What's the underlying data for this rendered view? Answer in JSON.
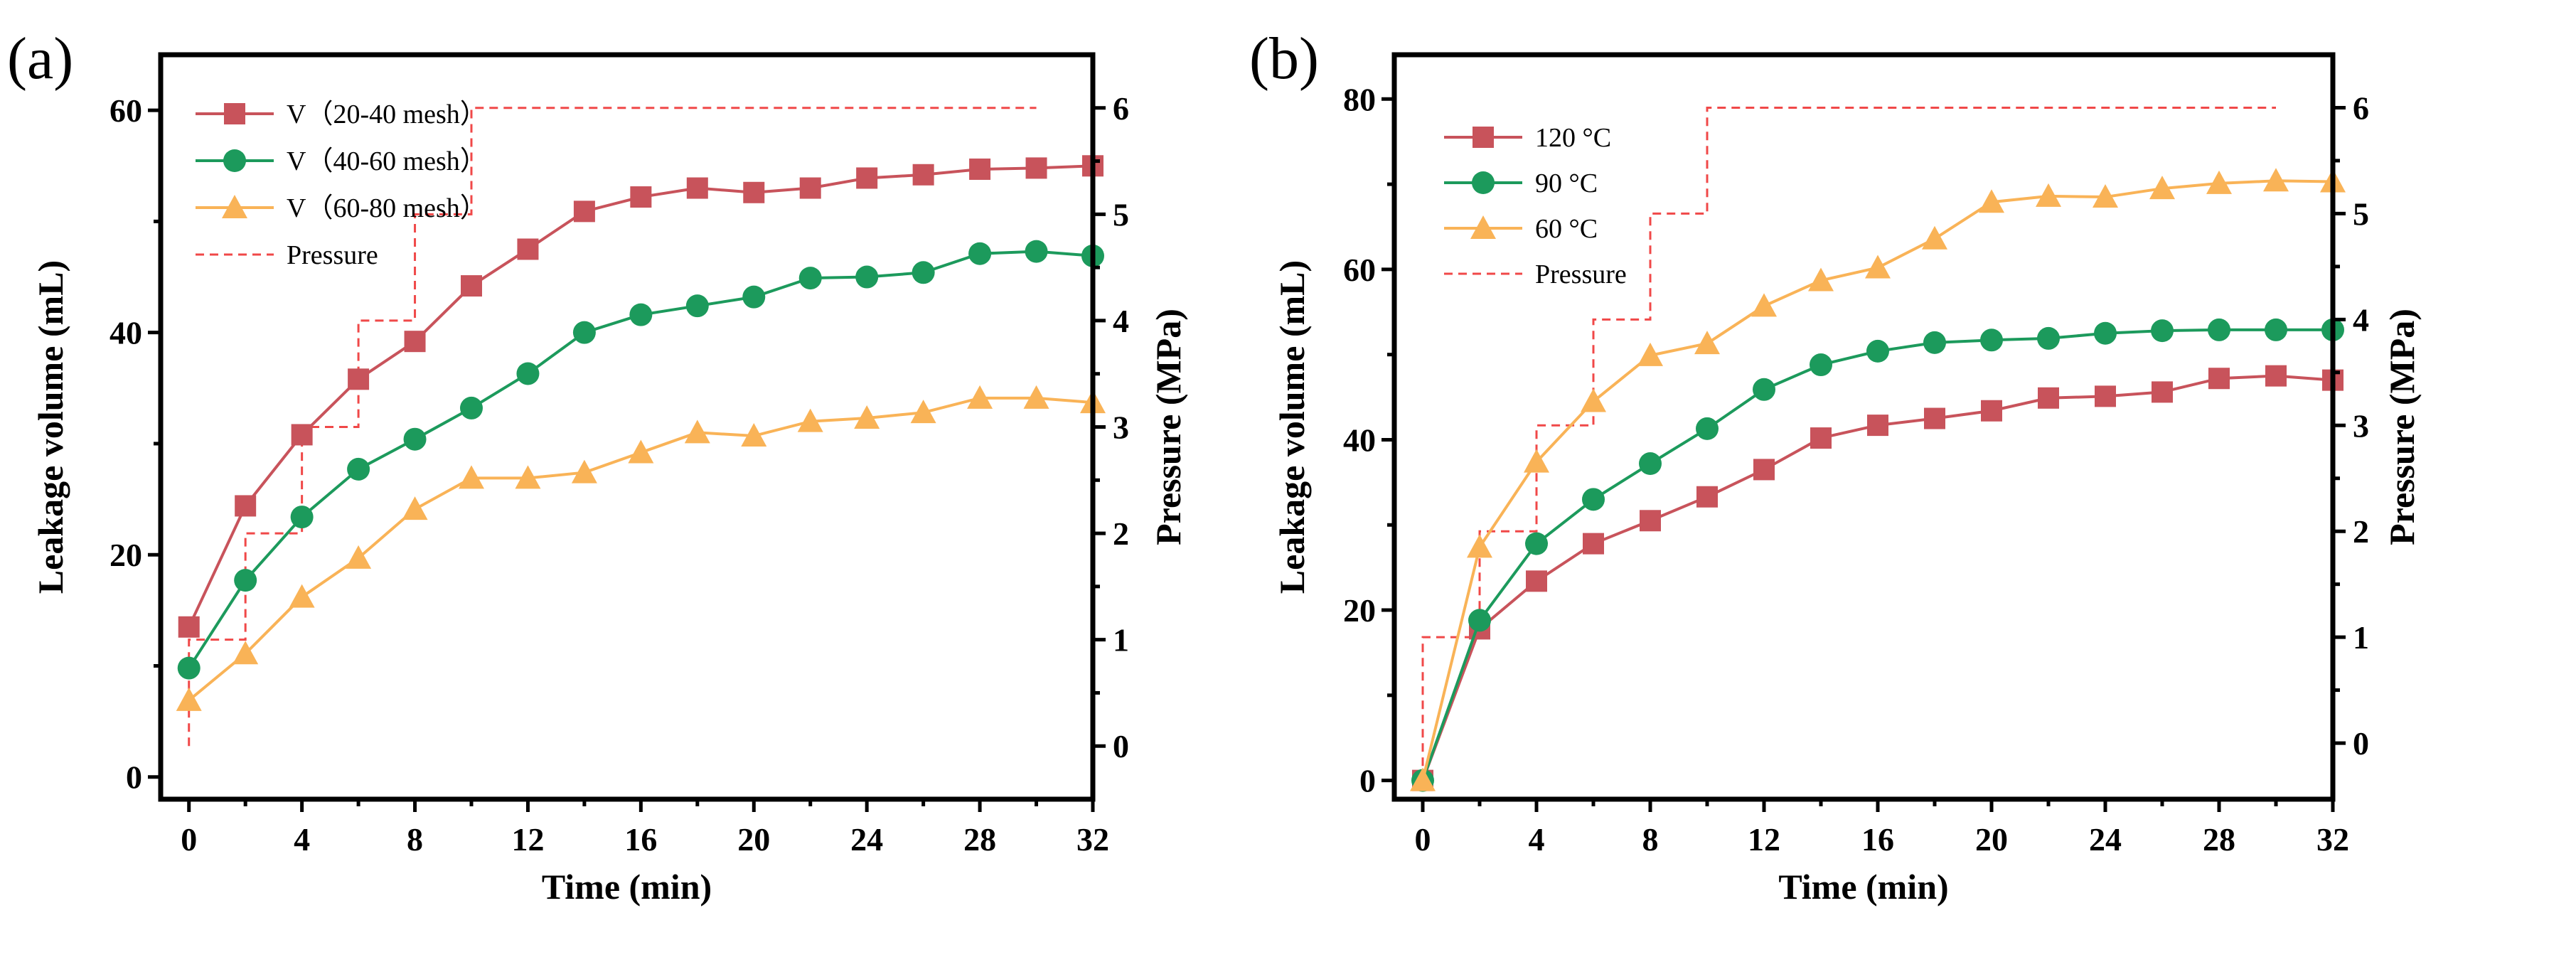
{
  "colors": {
    "red": "#c8535b",
    "green": "#1c9a5c",
    "orange": "#f9b357",
    "pressure": "#f04848"
  },
  "chart_data": [
    {
      "type": "line",
      "panel_label": "(a)",
      "xlabel": "Time (min)",
      "ylabel": "Leakage volume (mL)",
      "y2label": "Pressure (MPa)",
      "xlim": [
        -1,
        32
      ],
      "ylim": [
        -2,
        65
      ],
      "y2lim": [
        -0.5,
        6.5
      ],
      "xticks": [
        0,
        4,
        8,
        12,
        16,
        20,
        24,
        28,
        32
      ],
      "yticks": [
        0,
        20,
        40,
        60
      ],
      "y2ticks": [
        0,
        1,
        2,
        3,
        4,
        5,
        6
      ],
      "legend_position": "top-left",
      "x": [
        0,
        2,
        4,
        6,
        8,
        10,
        12,
        14,
        16,
        18,
        20,
        22,
        24,
        26,
        28,
        30,
        32
      ],
      "series": [
        {
          "name": "V（20-40 mesh）",
          "color": "red",
          "marker": "square",
          "values": [
            13.5,
            24.4,
            30.8,
            35.8,
            39.2,
            44.2,
            47.5,
            50.9,
            52.2,
            53.0,
            52.6,
            53.0,
            53.9,
            54.2,
            54.7,
            54.8,
            55.0
          ]
        },
        {
          "name": "V（40-60 mesh）",
          "color": "green",
          "marker": "circle",
          "values": [
            9.8,
            17.7,
            23.4,
            27.7,
            30.4,
            33.2,
            36.3,
            40.0,
            41.6,
            42.4,
            43.2,
            44.9,
            45.0,
            45.4,
            47.1,
            47.3,
            46.9
          ]
        },
        {
          "name": "V（60-80 mesh）",
          "color": "orange",
          "marker": "triangle",
          "values": [
            6.9,
            11.1,
            16.2,
            19.7,
            24.1,
            26.9,
            26.9,
            27.4,
            29.2,
            31.0,
            30.7,
            32.0,
            32.3,
            32.8,
            34.1,
            34.1,
            33.7
          ]
        }
      ],
      "pressure": {
        "name": "Pressure",
        "steps": [
          [
            0,
            0
          ],
          [
            0,
            1
          ],
          [
            2,
            1
          ],
          [
            2,
            2
          ],
          [
            4,
            2
          ],
          [
            4,
            3
          ],
          [
            6,
            3
          ],
          [
            6,
            4
          ],
          [
            8,
            4
          ],
          [
            8,
            5
          ],
          [
            10,
            5
          ],
          [
            10,
            6
          ],
          [
            30,
            6
          ]
        ]
      }
    },
    {
      "type": "line",
      "panel_label": "(b)",
      "xlabel": "Time (min)",
      "ylabel": "Leakage volume (mL)",
      "y2label": "Pressure (MPa)",
      "xlim": [
        -1,
        32
      ],
      "ylim": [
        -2.2,
        85.2
      ],
      "y2lim": [
        -0.53,
        6.5
      ],
      "xticks": [
        0,
        4,
        8,
        12,
        16,
        20,
        24,
        28,
        32
      ],
      "yticks": [
        0,
        20,
        40,
        60,
        80
      ],
      "y2ticks": [
        0,
        1,
        2,
        3,
        4,
        5,
        6
      ],
      "legend_position": "top-left",
      "x": [
        0,
        2,
        4,
        6,
        8,
        10,
        12,
        14,
        16,
        18,
        20,
        22,
        24,
        26,
        28,
        30,
        32
      ],
      "series": [
        {
          "name": "120 °C",
          "color": "red",
          "marker": "square",
          "values": [
            0,
            17.8,
            23.4,
            27.8,
            30.5,
            33.3,
            36.5,
            40.2,
            41.7,
            42.5,
            43.4,
            44.9,
            45.1,
            45.6,
            47.2,
            47.5,
            47.0
          ]
        },
        {
          "name": "90 °C",
          "color": "green",
          "marker": "circle",
          "values": [
            0,
            18.8,
            27.8,
            33.0,
            37.2,
            41.3,
            45.9,
            48.8,
            50.4,
            51.4,
            51.7,
            51.9,
            52.5,
            52.8,
            52.9,
            52.9,
            52.9
          ]
        },
        {
          "name": "60 °C",
          "color": "orange",
          "marker": "triangle",
          "values": [
            0,
            27.4,
            37.4,
            44.5,
            49.9,
            51.3,
            55.7,
            58.7,
            60.2,
            63.6,
            67.9,
            68.6,
            68.5,
            69.5,
            70.1,
            70.4,
            70.3
          ]
        }
      ],
      "pressure": {
        "name": "Pressure",
        "steps": [
          [
            0,
            -0.35
          ],
          [
            0,
            1
          ],
          [
            2,
            1
          ],
          [
            2,
            2
          ],
          [
            4,
            2
          ],
          [
            4,
            3
          ],
          [
            6,
            3
          ],
          [
            6,
            4
          ],
          [
            8,
            4
          ],
          [
            8,
            5
          ],
          [
            10,
            5
          ],
          [
            10,
            6
          ],
          [
            30,
            6
          ]
        ]
      }
    }
  ]
}
